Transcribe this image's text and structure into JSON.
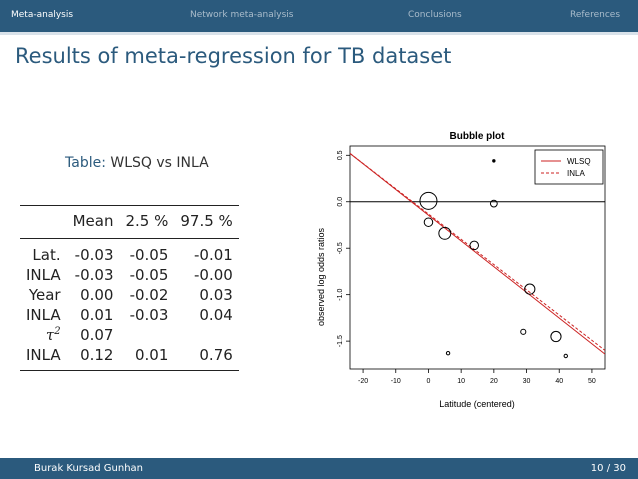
{
  "nav": {
    "items": [
      "Meta-analysis",
      "Network meta-analysis",
      "Conclusions",
      "References"
    ],
    "active_index": 0
  },
  "slide_title": "Results of meta-regression for TB dataset",
  "table": {
    "caption_label": "Table:",
    "caption_text": "WLSQ vs INLA",
    "headers": [
      "",
      "Mean",
      "2.5 %",
      "97.5 %"
    ],
    "rows": [
      [
        "Lat.",
        "-0.03",
        "-0.05",
        "-0.01"
      ],
      [
        "INLA",
        "-0.03",
        "-0.05",
        "-0.00"
      ],
      [
        "Year",
        "0.00",
        "-0.02",
        "0.03"
      ],
      [
        "INLA",
        "0.01",
        "-0.03",
        "0.04"
      ],
      [
        "τ2",
        "0.07",
        "",
        ""
      ],
      [
        "INLA",
        "0.12",
        "0.01",
        "0.76"
      ]
    ]
  },
  "chart_data": {
    "type": "scatter",
    "title": "Bubble plot",
    "xlabel": "Latitude (centered)",
    "ylabel": "observed log odds ratios",
    "xlim": [
      -24,
      54
    ],
    "ylim": [
      -1.8,
      0.6
    ],
    "xticks": [
      "-20",
      "-10",
      "0",
      "10",
      "20",
      "30",
      "40",
      "50"
    ],
    "yticks": [
      "-1.5",
      "-1.0",
      "-0.5",
      "0.0",
      "0.5"
    ],
    "reference_line_y": 0.0,
    "points": [
      {
        "x": 0.0,
        "y": 0.01,
        "size": 10
      },
      {
        "x": 0.0,
        "y": -0.22,
        "size": 5
      },
      {
        "x": 5.0,
        "y": -0.34,
        "size": 7
      },
      {
        "x": 14.0,
        "y": -0.47,
        "size": 5
      },
      {
        "x": 20.0,
        "y": -0.02,
        "size": 4
      },
      {
        "x": 20.0,
        "y": 0.44,
        "size": 1
      },
      {
        "x": 31.0,
        "y": -0.94,
        "size": 6
      },
      {
        "x": 29.0,
        "y": -1.4,
        "size": 3
      },
      {
        "x": 39.0,
        "y": -1.45,
        "size": 6
      },
      {
        "x": 6.0,
        "y": -1.63,
        "size": 2
      },
      {
        "x": 42.0,
        "y": -1.66,
        "size": 2
      }
    ],
    "series": [
      {
        "name": "WLSQ",
        "type": "line",
        "color": "#cc2222",
        "dash": "solid",
        "x": [
          -24,
          54
        ],
        "y": [
          0.52,
          -1.64
        ]
      },
      {
        "name": "INLA",
        "type": "line",
        "color": "#cc2222",
        "dash": "dashed",
        "x": [
          -24,
          54
        ],
        "y": [
          0.52,
          -1.6
        ]
      }
    ],
    "legend": {
      "position": "top-right",
      "entries": [
        "WLSQ",
        "INLA"
      ]
    }
  },
  "footer": {
    "author": "Burak Kursad Gunhan",
    "page_current": "10",
    "page_sep": " / ",
    "page_total": "30"
  }
}
